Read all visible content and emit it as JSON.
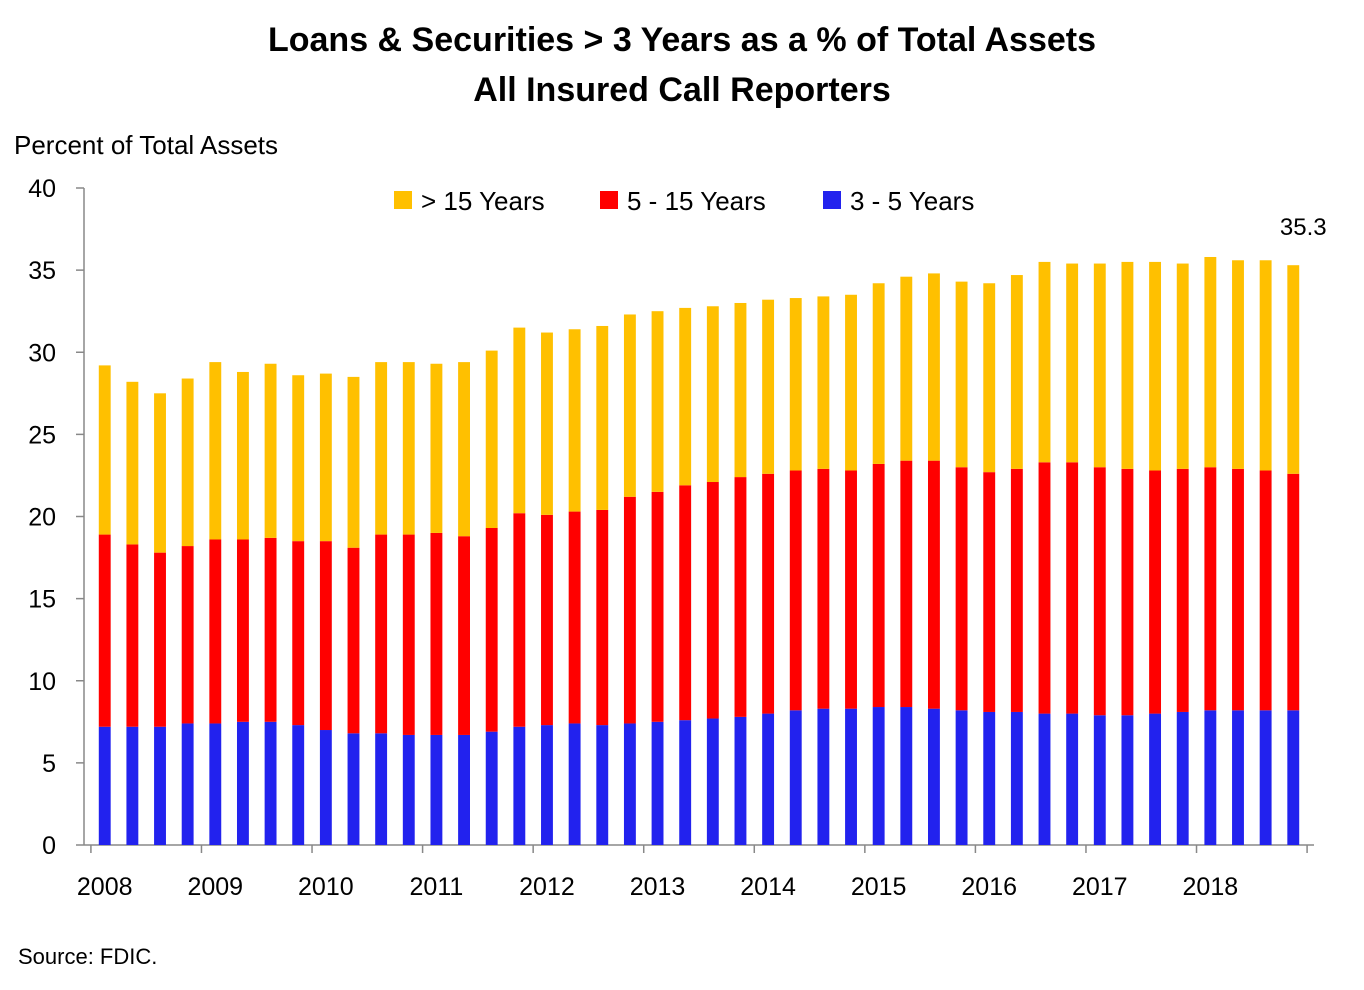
{
  "chart_data": {
    "type": "bar",
    "stacked": true,
    "title": "Loans & Securities > 3 Years as a % of Total Assets",
    "subtitle": "All Insured Call Reporters",
    "ylabel": "Percent of Total Assets",
    "xlabel": "",
    "ylim": [
      0,
      40
    ],
    "yticks": [
      "0",
      "5",
      "10",
      "15",
      "20",
      "25",
      "30",
      "35",
      "40"
    ],
    "year_labels": [
      "2008",
      "2009",
      "2010",
      "2011",
      "2012",
      "2013",
      "2014",
      "2015",
      "2016",
      "2017",
      "2018"
    ],
    "categories": [
      "2008 Q1",
      "2008 Q2",
      "2008 Q3",
      "2008 Q4",
      "2009 Q1",
      "2009 Q2",
      "2009 Q3",
      "2009 Q4",
      "2010 Q1",
      "2010 Q2",
      "2010 Q3",
      "2010 Q4",
      "2011 Q1",
      "2011 Q2",
      "2011 Q3",
      "2011 Q4",
      "2012 Q1",
      "2012 Q2",
      "2012 Q3",
      "2012 Q4",
      "2013 Q1",
      "2013 Q2",
      "2013 Q3",
      "2013 Q4",
      "2014 Q1",
      "2014 Q2",
      "2014 Q3",
      "2014 Q4",
      "2015 Q1",
      "2015 Q2",
      "2015 Q3",
      "2015 Q4",
      "2016 Q1",
      "2016 Q2",
      "2016 Q3",
      "2016 Q4",
      "2017 Q1",
      "2017 Q2",
      "2017 Q3",
      "2017 Q4",
      "2018 Q1",
      "2018 Q2",
      "2018 Q3",
      "2018 Q4"
    ],
    "series": [
      {
        "name": "3 - 5 Years",
        "color": "#2222ee",
        "values": [
          7.2,
          7.2,
          7.2,
          7.4,
          7.4,
          7.5,
          7.5,
          7.3,
          7.0,
          6.8,
          6.8,
          6.7,
          6.7,
          6.7,
          6.9,
          7.2,
          7.3,
          7.4,
          7.3,
          7.4,
          7.5,
          7.6,
          7.7,
          7.8,
          8.0,
          8.2,
          8.3,
          8.3,
          8.4,
          8.4,
          8.3,
          8.2,
          8.1,
          8.1,
          8.0,
          8.0,
          7.9,
          7.9,
          8.0,
          8.1,
          8.2,
          8.2,
          8.2,
          8.2
        ]
      },
      {
        "name": "5 - 15 Years",
        "color": "#ff0000",
        "values": [
          11.7,
          11.1,
          10.6,
          10.8,
          11.2,
          11.1,
          11.2,
          11.2,
          11.5,
          11.3,
          12.1,
          12.2,
          12.3,
          12.1,
          12.4,
          13.0,
          12.8,
          12.9,
          13.1,
          13.8,
          14.0,
          14.3,
          14.4,
          14.6,
          14.6,
          14.6,
          14.6,
          14.5,
          14.8,
          15.0,
          15.1,
          14.8,
          14.6,
          14.8,
          15.3,
          15.3,
          15.1,
          15.0,
          14.8,
          14.8,
          14.8,
          14.7,
          14.6,
          14.4
        ]
      },
      {
        "name": "> 15 Years",
        "color": "#ffc000",
        "values": [
          10.3,
          9.9,
          9.7,
          10.2,
          10.8,
          10.2,
          10.6,
          10.1,
          10.2,
          10.4,
          10.5,
          10.5,
          10.3,
          10.6,
          10.8,
          11.3,
          11.1,
          11.1,
          11.2,
          11.1,
          11.0,
          10.8,
          10.7,
          10.6,
          10.6,
          10.5,
          10.5,
          10.7,
          11.0,
          11.2,
          11.4,
          11.3,
          11.5,
          11.8,
          12.2,
          12.1,
          12.4,
          12.6,
          12.7,
          12.5,
          12.8,
          12.7,
          12.8,
          12.7
        ]
      }
    ],
    "legend_order": [
      "> 15 Years",
      "5 - 15 Years",
      "3 - 5 Years"
    ],
    "legend_position": "top",
    "annotations": [
      {
        "series_total_index": 43,
        "text": "35.3"
      }
    ],
    "grid": false
  },
  "source": "Source:  FDIC."
}
